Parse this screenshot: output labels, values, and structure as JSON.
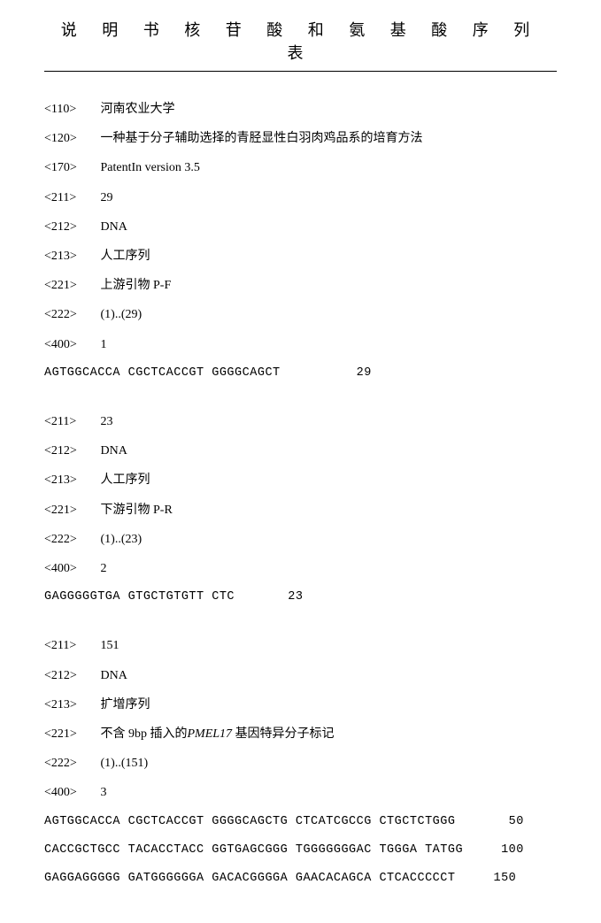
{
  "title": "说 明 书 核 苷 酸 和 氨 基 酸 序 列 表",
  "header": {
    "t110": "<110>",
    "v110": "河南农业大学",
    "t120": "<120>",
    "v120": "一种基于分子辅助选择的青胫显性白羽肉鸡品系的培育方法",
    "t170": "<170>",
    "v170": "PatentIn version 3.5"
  },
  "seq1": {
    "t211": "<211>",
    "v211": "29",
    "t212": "<212>",
    "v212": "DNA",
    "t213": "<213>",
    "v213": "人工序列",
    "t221": "<221>",
    "v221": "上游引物 P-F",
    "t222": "<222>",
    "v222": "(1)..(29)",
    "t400": "<400>",
    "v400": "1",
    "sequence": "AGTGGCACCA CGCTCACCGT GGGGCAGCT          29"
  },
  "seq2": {
    "t211": "<211>",
    "v211": "23",
    "t212": "<212>",
    "v212": "DNA",
    "t213": "<213>",
    "v213": "人工序列",
    "t221": "<221>",
    "v221": "下游引物 P-R",
    "t222": "<222>",
    "v222": "(1)..(23)",
    "t400": "<400>",
    "v400": "2",
    "sequence": "GAGGGGGTGA GTGCTGTGTT CTC       23"
  },
  "seq3": {
    "t211": "<211>",
    "v211": "151",
    "t212": "<212>",
    "v212": "DNA",
    "t213": "<213>",
    "v213": "扩增序列",
    "t221": "<221>",
    "v221_pre": "不含 9bp 插入的",
    "v221_gene": "PMEL17",
    "v221_post": " 基因特异分子标记",
    "t222": "<222>",
    "v222": "(1)..(151)",
    "t400": "<400>",
    "v400": "3",
    "line1": "AGTGGCACCA CGCTCACCGT GGGGCAGCTG CTCATCGCCG CTGCTCTGGG       50",
    "line2": "CACCGCTGCC TACACCTACC GGTGAGCGGG TGGGGGGGAC TGGGA TATGG     100",
    "line3": "GAGGAGGGGG GATGGGGGGA GACACGGGGA GAACACAGCA CTCACCCCCT     150"
  }
}
